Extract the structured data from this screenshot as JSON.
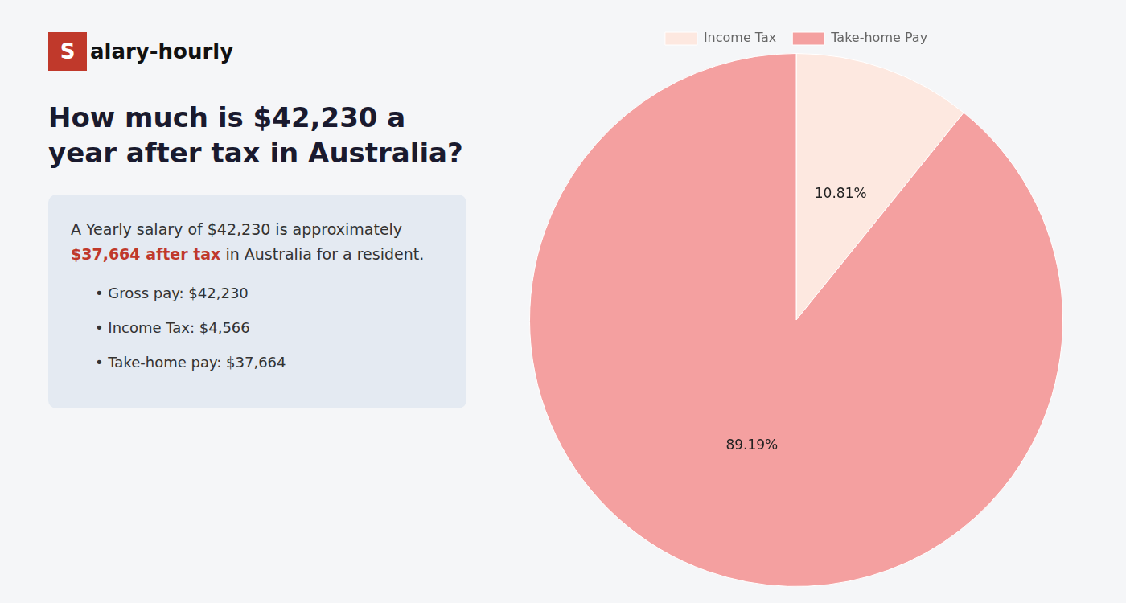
{
  "chart_data": {
    "type": "pie",
    "title": "How much is $42,230 a year after tax in Australia?",
    "categories": [
      "Income Tax",
      "Take-home Pay"
    ],
    "values": [
      10.81,
      89.19
    ],
    "value_labels": [
      "10.81%",
      "89.19%"
    ],
    "colors": [
      "#fde8e0",
      "#f4a0a0"
    ],
    "data_labels": true,
    "legend": "top",
    "annotations": [
      {
        "text": "S",
        "color": "#c0392b"
      },
      {
        "text": "alary-hourly"
      },
      {
        "text": "A Yearly salary of $42,230 is approximately"
      },
      {
        "text": "$37,664 after tax",
        "color": "#c0392b"
      },
      {
        "text": "in Australia for a resident."
      },
      {
        "text": "• Gross pay: $42,230"
      },
      {
        "text": "• Income Tax: $4,566"
      },
      {
        "text": "• Take-home pay: $37,664"
      }
    ]
  }
}
